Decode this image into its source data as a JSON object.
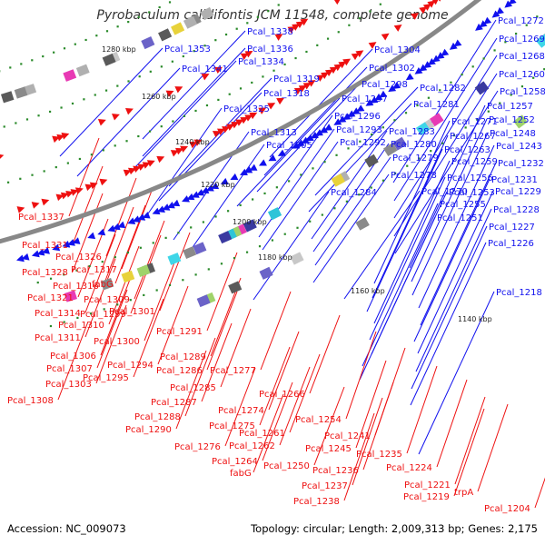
{
  "title": "Pyrobaculum calidifontis JCM 11548, complete genome",
  "footer": {
    "accession": "Accession: NC_009073",
    "stats": "Topology: circular; Length: 2,009,313 bp; Genes: 2,175"
  },
  "colors": {
    "forward_strand": "#1010ee",
    "reverse_strand": "#ee1010",
    "backbone": "#888888",
    "tick": "#2a8a2a"
  },
  "kbp_labels": [
    "1280 kbp",
    "1260 kbp",
    "1240 kbp",
    "1220 kbp",
    "1200 kbp",
    "1180 kbp",
    "1160 kbp",
    "1140 kbp"
  ],
  "blue_labels": [
    "Pcal_1338",
    "Pcal_1336",
    "Pcal_1353",
    "Pcal_1334",
    "Pcal_1341",
    "Pcal_1319",
    "Pcal_1318",
    "Pcal_1325",
    "Pcal_1304",
    "Pcal_1302",
    "Pcal_1298",
    "Pcal_1297",
    "Pcal_1296",
    "Pcal_1293",
    "Pcal_1313",
    "Pcal_1292",
    "Pcal_1305",
    "Pcal_1282",
    "Pcal_1281",
    "Pcal_1283",
    "Pcal_1280",
    "Pcal_1279",
    "Pcal_1278",
    "Pcal_1284",
    "Pcal_1270",
    "Pcal_1272",
    "Pcal_1269",
    "Pcal_1268",
    "Pcal_1260",
    "Pcal_1258",
    "Pcal_1257",
    "Pcal_1252",
    "Pcal_1271",
    "Pcal_1248",
    "Pcal_1267",
    "Pcal_1243",
    "Pcal_1263",
    "Pcal_1259",
    "Pcal_1232",
    "Pcal_1256",
    "Pcal_1231",
    "Pcal_1253",
    "Pcal_1229",
    "Pcal_1255",
    "Pcal_1228",
    "Pcal_1251",
    "Pcal_1227",
    "Pcal_1226",
    "Pcal_1218"
  ],
  "red_labels": [
    "Pcal_1337",
    "Pcal_1331",
    "Pcal_1326",
    "Pcal_1328",
    "Pcal_1317",
    "Pcal_1316",
    "fabG",
    "Pcal_1321",
    "Pcal_1309",
    "Pcal_1314",
    "Pcal_1299",
    "Pcal_1301",
    "Pcal_1310",
    "Pcal_1311",
    "Pcal_1300",
    "Pcal_1291",
    "Pcal_1306",
    "Pcal_1294",
    "Pcal_1307",
    "Pcal_1295",
    "Pcal_1289",
    "Pcal_1286",
    "Pcal_1277",
    "Pcal_1303",
    "Pcal_1285",
    "Pcal_1308",
    "Pcal_1287",
    "Pcal_1266",
    "Pcal_1288",
    "Pcal_1274",
    "Pcal_1290",
    "Pcal_1275",
    "Pcal_1254",
    "Pcal_1261",
    "Pcal_1276",
    "Pcal_1262",
    "Pcal_1241",
    "Pcal_1245",
    "Pcal_1264",
    "Pcal_1235",
    "fabG",
    "Pcal_1250",
    "Pcal_1236",
    "Pcal_1224",
    "Pcal_1237",
    "Pcal_1221",
    "Pcal_1219",
    "trpA",
    "Pcal_1238",
    "Pcal_1204"
  ]
}
